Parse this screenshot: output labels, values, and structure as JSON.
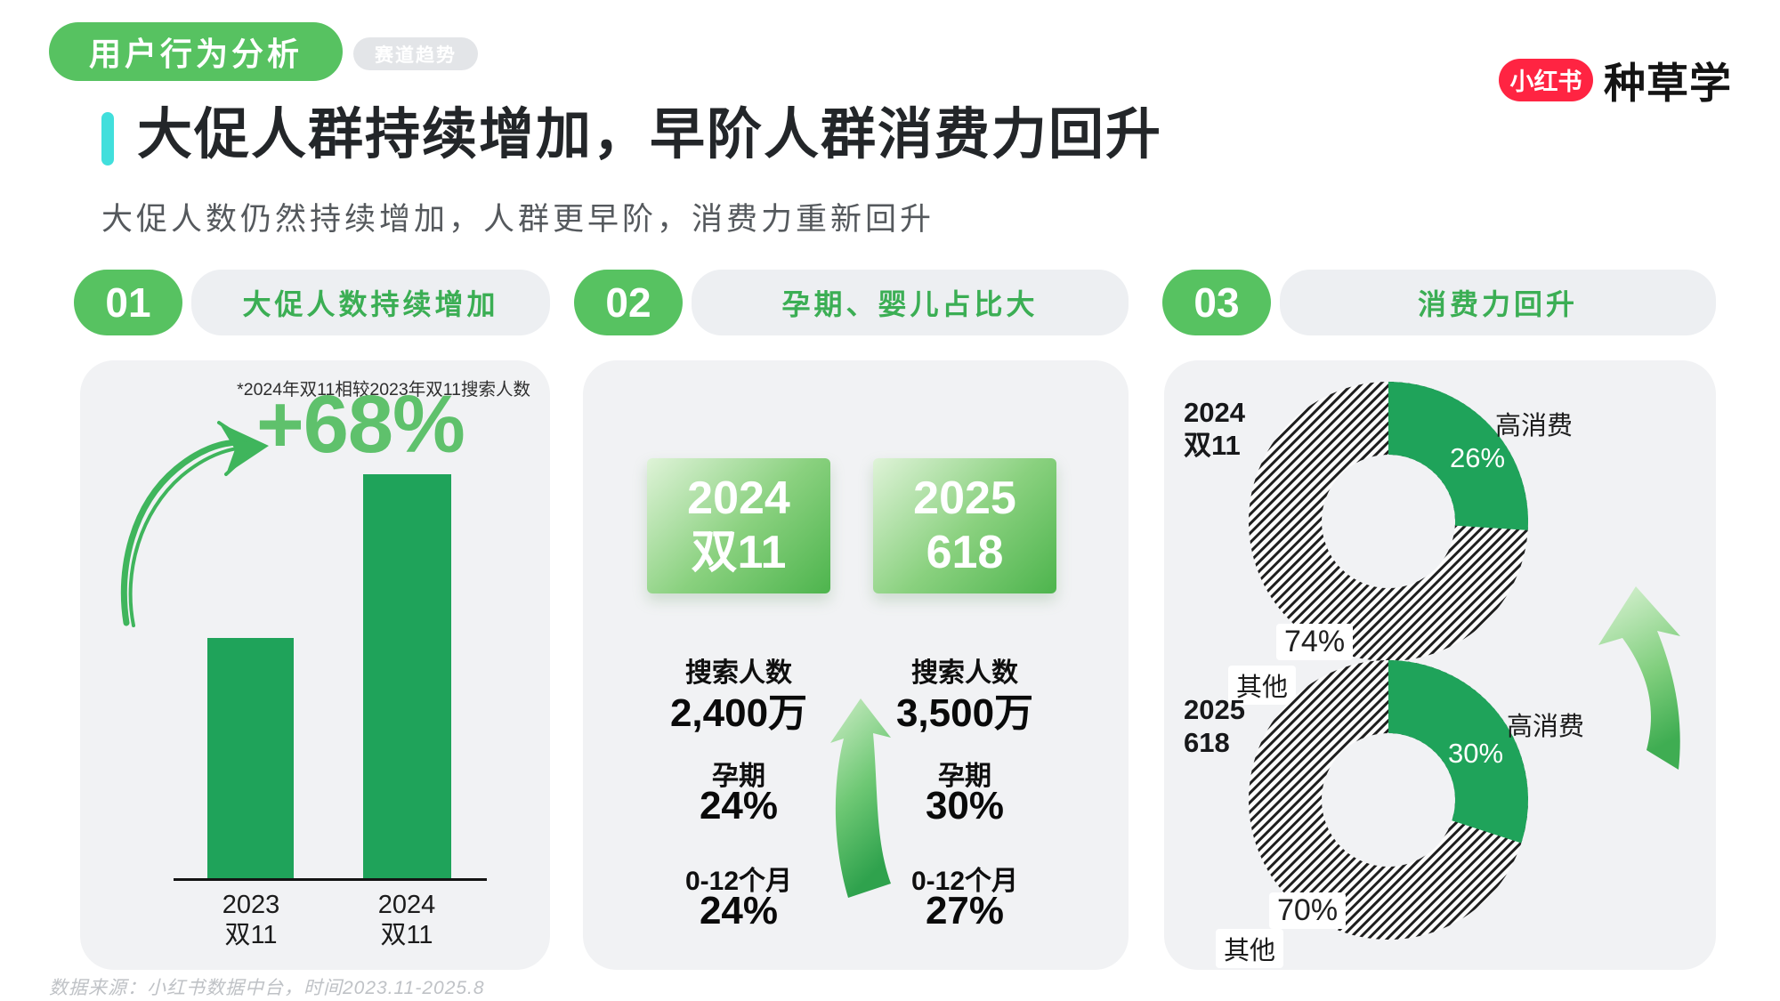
{
  "header": {
    "category_pill": "用户行为分析",
    "tag_pill": "赛道趋势",
    "logo": {
      "badge": "小红书",
      "brand": "种草学",
      "badge_color": "#FF2442"
    },
    "title": "大促人群持续增加，早阶人群消费力回升",
    "subtitle": "大促人数仍然持续增加，人群更早阶，消费力重新回升",
    "accent_color": "#41DFDC"
  },
  "sections": [
    {
      "number": "01",
      "label": "大促人数持续增加"
    },
    {
      "number": "02",
      "label": "孕期、婴儿占比大"
    },
    {
      "number": "03",
      "label": "消费力回升"
    }
  ],
  "panel_growth": {
    "note": "*2024年双11相较2023年双11搜索人数",
    "headline": "+68%",
    "bars": [
      {
        "line1": "2023",
        "line2": "双11"
      },
      {
        "line1": "2024",
        "line2": "双11"
      }
    ]
  },
  "panel_stage": {
    "periods": [
      {
        "line1": "2024",
        "line2": "双11"
      },
      {
        "line1": "2025",
        "line2": "618"
      }
    ],
    "stats": [
      {
        "label": "搜索人数",
        "values": [
          "2,400万",
          "3,500万"
        ]
      },
      {
        "label": "孕期",
        "values": [
          "24%",
          "30%"
        ]
      },
      {
        "label": "0-12个月",
        "values": [
          "24%",
          "27%"
        ]
      }
    ]
  },
  "panel_consumption": {
    "donuts": [
      {
        "period_line1": "2024",
        "period_line2": "双11",
        "hi_label": "高消费",
        "hi_value": "26%",
        "other_label": "其他",
        "other_value": "74%"
      },
      {
        "period_line1": "2025",
        "period_line2": "618",
        "hi_label": "高消费",
        "hi_value": "30%",
        "other_label": "其他",
        "other_value": "70%"
      }
    ]
  },
  "footer": "数据来源：小红书数据中台，时间2023.11-2025.8",
  "colors": {
    "green_dark": "#1FA35A",
    "green_badge": "#57C261",
    "green_light_text": "#5FC16C",
    "section_label_green": "#3BAE54",
    "card_bg": "#F1F2F4",
    "accent_cyan": "#41DFDC",
    "brand_red": "#FF2442"
  },
  "chart_data": [
    {
      "id": "search_growth",
      "type": "bar",
      "title": "大促人数持续增加",
      "categories": [
        "2023双11",
        "2024双11"
      ],
      "values": [
        100,
        168
      ],
      "unit": "indexed search users (2023双11 = 100)",
      "annotation": "+68%",
      "note": "*2024年双11相较2023年双11搜索人数",
      "bar_color": "#1FA35A",
      "legend_position": "none",
      "grid": false
    },
    {
      "id": "stage_compare",
      "type": "table",
      "title": "孕期、婴儿占比大",
      "columns": [
        "2024双11",
        "2025 618"
      ],
      "rows": [
        [
          "搜索人数",
          "2,400万",
          "3,500万"
        ],
        [
          "孕期",
          "24%",
          "30%"
        ],
        [
          "0-12个月",
          "24%",
          "27%"
        ]
      ]
    },
    {
      "id": "hi_2024",
      "type": "pie",
      "title": "2024双11 消费力构成",
      "slices": [
        {
          "label": "高消费",
          "value": 26,
          "style": "solid-green"
        },
        {
          "label": "其他",
          "value": 74,
          "style": "hatched"
        }
      ]
    },
    {
      "id": "hi_2025",
      "type": "pie",
      "title": "2025 618 消费力构成",
      "slices": [
        {
          "label": "高消费",
          "value": 30,
          "style": "solid-green"
        },
        {
          "label": "其他",
          "value": 70,
          "style": "hatched"
        }
      ]
    }
  ]
}
